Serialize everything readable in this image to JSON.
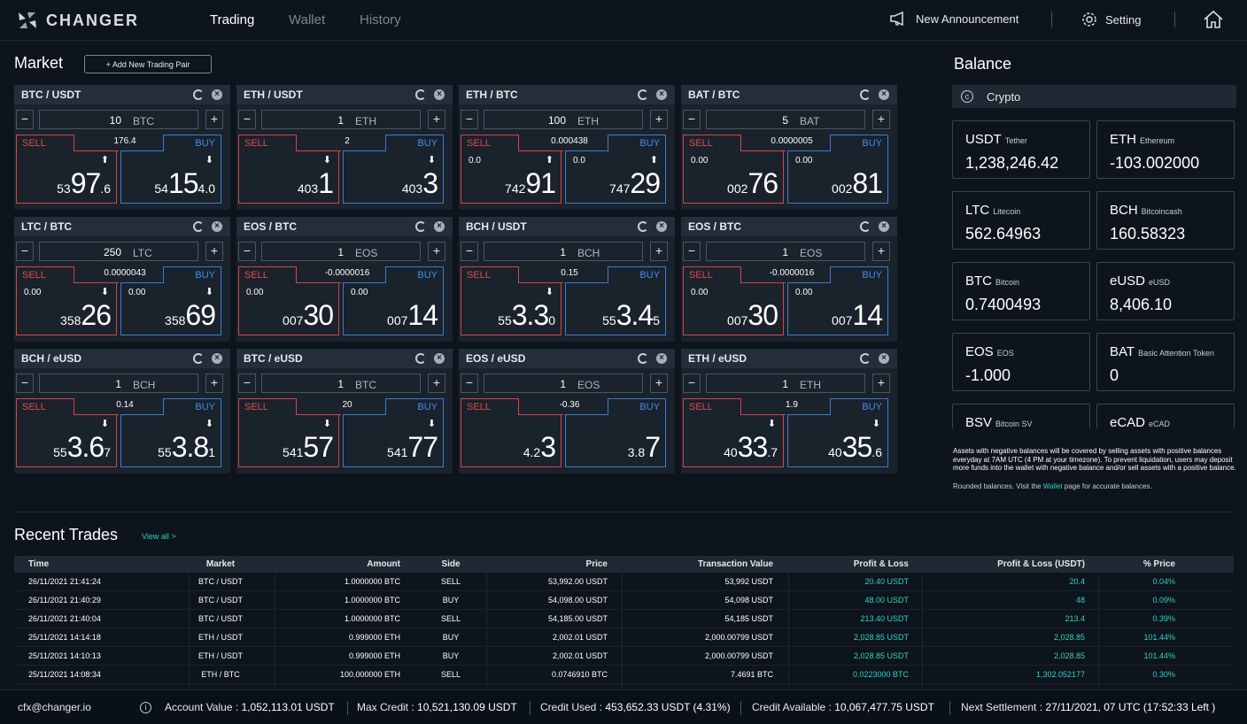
{
  "header": {
    "logo_text": "CHANGER",
    "tabs": [
      {
        "label": "Trading",
        "active": true
      },
      {
        "label": "Wallet",
        "active": false
      },
      {
        "label": "History",
        "active": false
      }
    ],
    "announcement_label": "New Announcement",
    "setting_label": "Setting"
  },
  "market": {
    "title": "Market",
    "add_pair_label": "+ Add New Trading Pair",
    "pairs": [
      {
        "pair": "BTC / USDT",
        "qty": "10",
        "unit": "BTC",
        "spread": "176.4",
        "sell_change": "",
        "buy_change": "",
        "sell_arrow": "⬆",
        "buy_arrow": "⬇",
        "sell_pre": "53",
        "sell_big": "97",
        "sell_suf": ".6",
        "buy_pre": "54",
        "buy_big": "15",
        "buy_suf": "4.0"
      },
      {
        "pair": "ETH / USDT",
        "qty": "1",
        "unit": "ETH",
        "spread": "2",
        "sell_change": "",
        "buy_change": "",
        "sell_arrow": "⬇",
        "buy_arrow": "⬇",
        "sell_pre": "403",
        "sell_big": "1",
        "sell_suf": "",
        "buy_pre": "403",
        "buy_big": "3",
        "buy_suf": ""
      },
      {
        "pair": "ETH / BTC",
        "qty": "100",
        "unit": "ETH",
        "spread": "0.000438",
        "sell_change": "0.0",
        "buy_change": "0.0",
        "sell_arrow": "⬆",
        "buy_arrow": "⬆",
        "sell_pre": "742",
        "sell_big": "91",
        "sell_suf": "",
        "buy_pre": "747",
        "buy_big": "29",
        "buy_suf": ""
      },
      {
        "pair": "BAT / BTC",
        "qty": "5",
        "unit": "BAT",
        "spread": "0.0000005",
        "sell_change": "0.00",
        "buy_change": "0.00",
        "sell_arrow": "",
        "buy_arrow": "",
        "sell_pre": "002",
        "sell_big": "76",
        "sell_suf": "",
        "buy_pre": "002",
        "buy_big": "81",
        "buy_suf": ""
      },
      {
        "pair": "LTC / BTC",
        "qty": "250",
        "unit": "LTC",
        "spread": "0.0000043",
        "sell_change": "0.00",
        "buy_change": "0.00",
        "sell_arrow": "⬇",
        "buy_arrow": "⬇",
        "sell_pre": "358",
        "sell_big": "26",
        "sell_suf": "",
        "buy_pre": "358",
        "buy_big": "69",
        "buy_suf": ""
      },
      {
        "pair": "EOS / BTC",
        "qty": "1",
        "unit": "EOS",
        "spread": "-0.0000016",
        "sell_change": "0.00",
        "buy_change": "0.00",
        "sell_arrow": "",
        "buy_arrow": "",
        "sell_pre": "007",
        "sell_big": "30",
        "sell_suf": "",
        "buy_pre": "007",
        "buy_big": "14",
        "buy_suf": ""
      },
      {
        "pair": "BCH / USDT",
        "qty": "1",
        "unit": "BCH",
        "spread": "0.15",
        "sell_change": "",
        "buy_change": "",
        "sell_arrow": "⬇",
        "buy_arrow": "",
        "sell_pre": "55",
        "sell_big": "3.3",
        "sell_suf": "0",
        "buy_pre": "55",
        "buy_big": "3.4",
        "buy_suf": "5"
      },
      {
        "pair": "EOS / BTC",
        "qty": "1",
        "unit": "EOS",
        "spread": "-0.0000016",
        "sell_change": "0.00",
        "buy_change": "0.00",
        "sell_arrow": "",
        "buy_arrow": "",
        "sell_pre": "007",
        "sell_big": "30",
        "sell_suf": "",
        "buy_pre": "007",
        "buy_big": "14",
        "buy_suf": ""
      },
      {
        "pair": "BCH / eUSD",
        "qty": "1",
        "unit": "BCH",
        "spread": "0.14",
        "sell_change": "",
        "buy_change": "",
        "sell_arrow": "⬇",
        "buy_arrow": "⬇",
        "sell_pre": "55",
        "sell_big": "3.6",
        "sell_suf": "7",
        "buy_pre": "55",
        "buy_big": "3.8",
        "buy_suf": "1"
      },
      {
        "pair": "BTC / eUSD",
        "qty": "1",
        "unit": "BTC",
        "spread": "20",
        "sell_change": "",
        "buy_change": "",
        "sell_arrow": "⬇",
        "buy_arrow": "⬇",
        "sell_pre": "541",
        "sell_big": "57",
        "sell_suf": "",
        "buy_pre": "541",
        "buy_big": "77",
        "buy_suf": ""
      },
      {
        "pair": "EOS / eUSD",
        "qty": "1",
        "unit": "EOS",
        "spread": "-0.36",
        "sell_change": "",
        "buy_change": "",
        "sell_arrow": "",
        "buy_arrow": "",
        "sell_pre": "4.2",
        "sell_big": "3",
        "sell_suf": "",
        "buy_pre": "3.8",
        "buy_big": "7",
        "buy_suf": ""
      },
      {
        "pair": "ETH / eUSD",
        "qty": "1",
        "unit": "ETH",
        "spread": "1.9",
        "sell_change": "",
        "buy_change": "",
        "sell_arrow": "⬇",
        "buy_arrow": "⬇",
        "sell_pre": "40",
        "sell_big": "33",
        "sell_suf": ".7",
        "buy_pre": "40",
        "buy_big": "35",
        "buy_suf": ".6"
      }
    ],
    "sell_label": "SELL",
    "buy_label": "BUY"
  },
  "balance": {
    "title": "Balance",
    "tab_label": "Crypto",
    "assets": [
      {
        "symbol": "USDT",
        "name": "Tether",
        "amount": "1,238,246.42"
      },
      {
        "symbol": "ETH",
        "name": "Ethereum",
        "amount": "-103.002000"
      },
      {
        "symbol": "LTC",
        "name": "Litecoin",
        "amount": "562.64963"
      },
      {
        "symbol": "BCH",
        "name": "Bitcoincash",
        "amount": "160.58323"
      },
      {
        "symbol": "BTC",
        "name": "Bitcoin",
        "amount": "0.7400493"
      },
      {
        "symbol": "eUSD",
        "name": "eUSD",
        "amount": "8,406.10"
      },
      {
        "symbol": "EOS",
        "name": "EOS",
        "amount": "-1.000"
      },
      {
        "symbol": "BAT",
        "name": "Basic Attention Token",
        "amount": "0"
      },
      {
        "symbol": "BSV",
        "name": "Bitcoin SV",
        "amount": ""
      },
      {
        "symbol": "eCAD",
        "name": "eCAD",
        "amount": ""
      }
    ],
    "note": "Assets with negative balances will be covered by selling assets with positive balances everyday at 7AM UTC (4 PM at your timezone). To prevent liquidation, users may deposit more funds into the wallet with negative balance and/or sell assets with a positive balance.",
    "rounded_pre": "Rounded balances. Visit the",
    "rounded_link": "Wallet",
    "rounded_post": "page for accurate balances."
  },
  "trades": {
    "title": "Recent Trades",
    "view_all": "View all >",
    "columns": [
      "Time",
      "Market",
      "Amount",
      "Side",
      "Price",
      "Transaction Value",
      "Profit & Loss",
      "Profit & Loss (USDT)",
      "% Price"
    ],
    "rows": [
      [
        "26/11/2021 21:41:24",
        "BTC / USDT",
        "1.0000000 BTC",
        "SELL",
        "53,992.00 USDT",
        "53,992 USDT",
        "20.40 USDT",
        "20.4",
        "0.04%"
      ],
      [
        "26/11/2021 21:40:29",
        "BTC / USDT",
        "1.0000000 BTC",
        "BUY",
        "54,098.00 USDT",
        "54,098 USDT",
        "48.00 USDT",
        "48",
        "0.09%"
      ],
      [
        "26/11/2021 21:40:04",
        "BTC / USDT",
        "1.0000000 BTC",
        "SELL",
        "54,185.00 USDT",
        "54,185 USDT",
        "213.40 USDT",
        "213.4",
        "0.39%"
      ],
      [
        "25/11/2021 14:14:18",
        "ETH / USDT",
        "0.999000 ETH",
        "BUY",
        "2,002.01 USDT",
        "2,000.00799 USDT",
        "2,028.85 USDT",
        "2,028.85",
        "101.44%"
      ],
      [
        "25/11/2021 14:10:13",
        "ETH / USDT",
        "0.999000 ETH",
        "BUY",
        "2,002.01 USDT",
        "2,000.00799 USDT",
        "2,028.85 USDT",
        "2,028.85",
        "101.44%"
      ],
      [
        "25/11/2021 14:08:34",
        "ETH / BTC",
        "100.000000 ETH",
        "SELL",
        "0.0746910 BTC",
        "7.4691 BTC",
        "0.0223000 BTC",
        "1,302.052177",
        "0.30%"
      ]
    ]
  },
  "footer": {
    "email": "cfx@changer.io",
    "account_value_label": "Account Value :",
    "account_value": "1,052,113.01 USDT",
    "max_credit_label": "Max Credit :",
    "max_credit": "10,521,130.09 USDT",
    "credit_used_label": "Credit Used :",
    "credit_used": "453,652.33 USDT (4.31%)",
    "credit_available_label": "Credit Available :",
    "credit_available": "10,067,477.75 USDT",
    "next_settlement_label": "Next Settlement :",
    "next_settlement": "27/11/2021, 07 UTC (17:52:33 Left )"
  }
}
